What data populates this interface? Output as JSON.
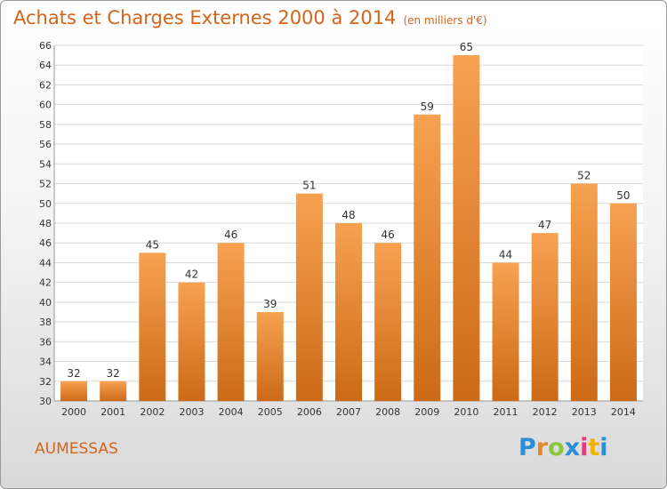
{
  "header": {
    "title": "Achats et Charges Externes 2000 à 2014",
    "subtitle": "(en milliers d'€)"
  },
  "commune": "AUMESSAS",
  "logo": {
    "text": "Proxiti",
    "colors": [
      "#2b8fd6",
      "#e8862a",
      "#8cc63f",
      "#2b8fd6",
      "#e23b7c",
      "#f0b400",
      "#2b8fd6"
    ]
  },
  "chart_data": {
    "type": "bar",
    "categories": [
      "2000",
      "2001",
      "2002",
      "2003",
      "2004",
      "2005",
      "2006",
      "2007",
      "2008",
      "2009",
      "2010",
      "2011",
      "2012",
      "2013",
      "2014"
    ],
    "values": [
      32,
      32,
      45,
      42,
      46,
      39,
      51,
      48,
      46,
      59,
      65,
      44,
      47,
      52,
      50
    ],
    "ylim": [
      30,
      66
    ],
    "yticks": [
      30,
      32,
      34,
      36,
      38,
      40,
      42,
      44,
      46,
      48,
      50,
      52,
      54,
      56,
      58,
      60,
      62,
      64,
      66
    ],
    "grid": true,
    "bar_color_top": "#f6a251",
    "bar_color_bottom": "#cc6a16",
    "title": "Achats et Charges Externes 2000 à 2014",
    "ylabel": "(en milliers d'€)"
  }
}
